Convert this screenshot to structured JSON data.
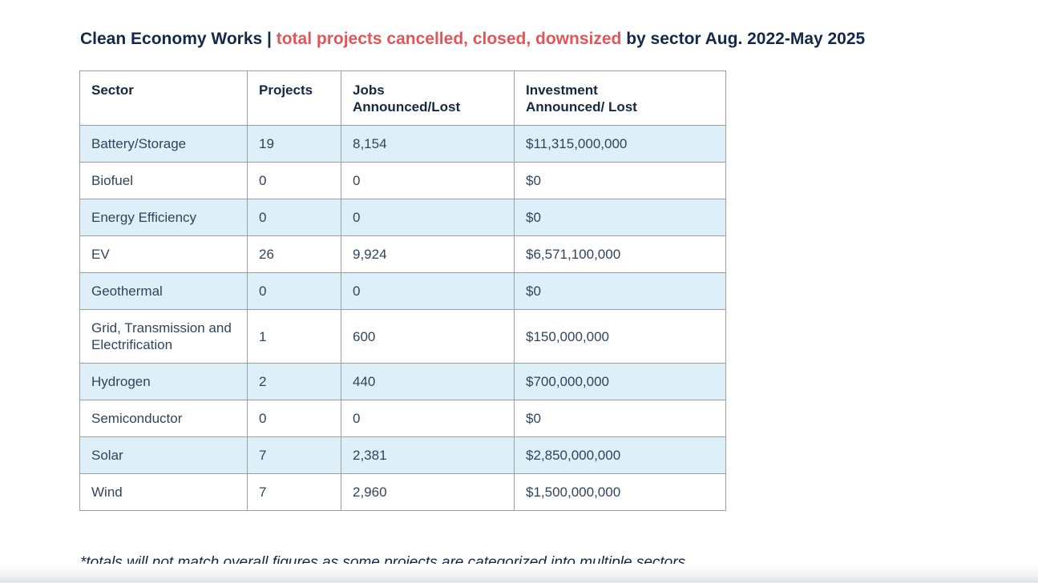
{
  "page": {
    "title": {
      "prefix": "Clean Economy Works | ",
      "highlight": "total projects cancelled, closed, downsized",
      "suffix": " by sector Aug. 2022-May 2025"
    },
    "footnote": "*totals will not match overall figures as some projects are categorized into multiple sectors"
  },
  "colors": {
    "title_navy": "#13294a",
    "title_red": "#e15759",
    "header_text": "#14293f",
    "body_text": "#30455c",
    "row_stripe_blue": "#ddeff8",
    "table_border": "#9e9e9e"
  },
  "table": {
    "headers": [
      "Sector",
      "Projects",
      "Jobs\nAnnounced/Lost",
      "Investment\nAnnounced/ Lost"
    ],
    "rows": [
      {
        "sector": "Battery/Storage",
        "projects": "19",
        "jobs": "8,154",
        "investment": "$11,315,000,000"
      },
      {
        "sector": "Biofuel",
        "projects": "0",
        "jobs": "0",
        "investment": "$0"
      },
      {
        "sector": "Energy Efficiency",
        "projects": "0",
        "jobs": "0",
        "investment": "$0"
      },
      {
        "sector": "EV",
        "projects": "26",
        "jobs": "9,924",
        "investment": "$6,571,100,000"
      },
      {
        "sector": "Geothermal",
        "projects": "0",
        "jobs": "0",
        "investment": "$0"
      },
      {
        "sector": "Grid, Transmission and Electrification",
        "projects": "1",
        "jobs": "600",
        "investment": "$150,000,000"
      },
      {
        "sector": "Hydrogen",
        "projects": "2",
        "jobs": "440",
        "investment": "$700,000,000"
      },
      {
        "sector": "Semiconductor",
        "projects": "0",
        "jobs": "0",
        "investment": "$0"
      },
      {
        "sector": "Solar",
        "projects": "7",
        "jobs": "2,381",
        "investment": "$2,850,000,000"
      },
      {
        "sector": "Wind",
        "projects": "7",
        "jobs": "2,960",
        "investment": "$1,500,000,000"
      }
    ]
  },
  "chart_data": {
    "type": "table",
    "title": "Clean Economy Works | total projects cancelled, closed, downsized by sector Aug. 2022-May 2025",
    "columns": [
      "Sector",
      "Projects",
      "Jobs Announced/Lost",
      "Investment Announced/ Lost"
    ],
    "rows": [
      [
        "Battery/Storage",
        19,
        8154,
        11315000000
      ],
      [
        "Biofuel",
        0,
        0,
        0
      ],
      [
        "Energy Efficiency",
        0,
        0,
        0
      ],
      [
        "EV",
        26,
        9924,
        6571100000
      ],
      [
        "Geothermal",
        0,
        0,
        0
      ],
      [
        "Grid, Transmission and Electrification",
        1,
        600,
        150000000
      ],
      [
        "Hydrogen",
        2,
        440,
        700000000
      ],
      [
        "Semiconductor",
        0,
        0,
        0
      ],
      [
        "Solar",
        7,
        2381,
        2850000000
      ],
      [
        "Wind",
        7,
        2960,
        1500000000
      ]
    ],
    "footnote": "*totals will not match overall figures as some projects are categorized into multiple sectors",
    "layout": "zebra-striped table, odd rows pale blue, grid borders gray, all text left-aligned"
  }
}
